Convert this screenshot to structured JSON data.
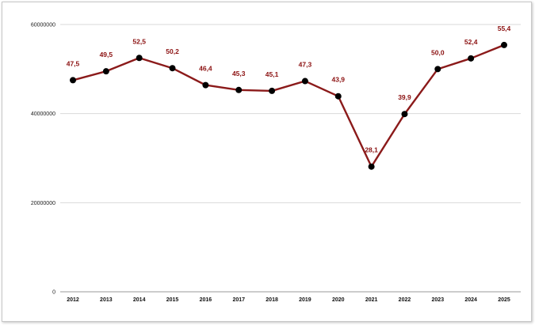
{
  "chart_data": {
    "type": "line",
    "categories": [
      "2012",
      "2013",
      "2014",
      "2015",
      "2016",
      "2017",
      "2018",
      "2019",
      "2020",
      "2021",
      "2022",
      "2023",
      "2024",
      "2025"
    ],
    "series": [
      {
        "values": [
          47500000,
          49500000,
          52500000,
          50200000,
          46400000,
          45300000,
          45100000,
          47300000,
          43900000,
          28100000,
          39900000,
          50000000,
          52400000,
          55400000
        ],
        "data_labels": [
          "47,5",
          "49,5",
          "52,5",
          "50,2",
          "46,4",
          "45,3",
          "45,1",
          "47,3",
          "43,9",
          "28,1",
          "39,9",
          "50,0",
          "52,4",
          "55,4"
        ]
      }
    ],
    "y_ticks": [
      0,
      20000000,
      40000000,
      60000000
    ],
    "y_tick_labels": [
      "0",
      "20000000",
      "40000000",
      "60000000"
    ],
    "ylim": [
      0,
      60000000
    ],
    "grid": true,
    "legend": "none",
    "colors": {
      "line": "#8b1a1a",
      "marker": "#000000",
      "label": "#8b1010",
      "grid": "#d9d9d9"
    }
  }
}
